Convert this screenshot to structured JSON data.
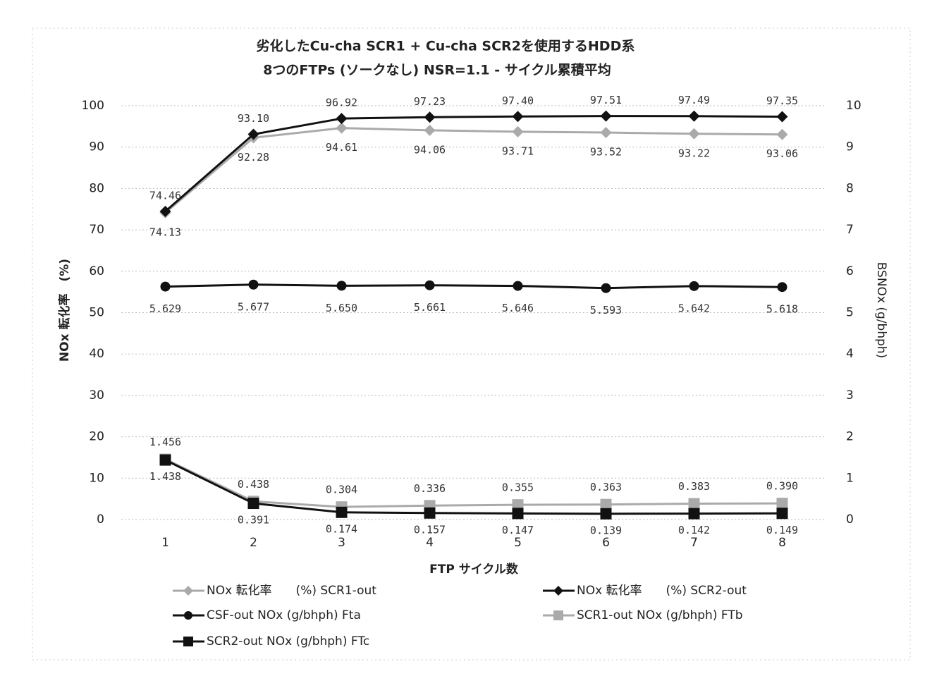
{
  "chart_data": {
    "type": "line",
    "title": "劣化したCu-cha SCR1 + Cu-cha SCR2を使用するHDD系",
    "subtitle": "8つのFTPs (ソークなし) NSR=1.1 - サイクル累積平均",
    "x_label": "FTP サイクル数",
    "y_label": "NOx 転化率　(%)",
    "y2_label": "BSNOx (g/bhph)",
    "categories": [
      "1",
      "2",
      "3",
      "4",
      "5",
      "6",
      "7",
      "8"
    ],
    "ylim": [
      0,
      100
    ],
    "yticks": [
      0,
      10,
      20,
      30,
      40,
      50,
      60,
      70,
      80,
      90,
      100
    ],
    "y2lim": [
      0,
      10
    ],
    "y2ticks": [
      0,
      1,
      2,
      3,
      4,
      5,
      6,
      7,
      8,
      9,
      10
    ],
    "grid": true,
    "series": [
      {
        "name": "NOx 転化率　　(%) SCR1-out",
        "color": "#aaaaaa",
        "marker": "diamond",
        "values": [
          74.13,
          92.28,
          94.61,
          94.06,
          93.71,
          93.52,
          93.22,
          93.06
        ],
        "value_labels": [
          "74.13",
          "92.28",
          "94.61",
          "94.06",
          "93.71",
          "93.52",
          "93.22",
          "93.06"
        ]
      },
      {
        "name": "NOx 転化率　　(%) SCR2-out",
        "color": "#111111",
        "marker": "diamond",
        "values": [
          74.46,
          93.1,
          96.92,
          97.23,
          97.4,
          97.51,
          97.49,
          97.35
        ],
        "value_labels": [
          "74.46",
          "93.10",
          "96.92",
          "97.23",
          "97.40",
          "97.51",
          "97.49",
          "97.35"
        ]
      },
      {
        "name": "CSF-out NOx (g/bhph) Fta",
        "color": "#111111",
        "marker": "circle",
        "axis": "y2",
        "values": [
          5.629,
          5.677,
          5.65,
          5.661,
          5.646,
          5.593,
          5.642,
          5.618
        ],
        "value_labels": [
          "5.629",
          "5.677",
          "5.650",
          "5.661",
          "5.646",
          "5.593",
          "5.642",
          "5.618"
        ]
      },
      {
        "name": "SCR1-out NOx (g/bhph) FTb",
        "color": "#aaaaaa",
        "marker": "square",
        "axis": "y2",
        "values": [
          1.456,
          0.438,
          0.304,
          0.336,
          0.355,
          0.363,
          0.383,
          0.39
        ],
        "value_labels": [
          "1.456",
          "0.438",
          "0.304",
          "0.336",
          "0.355",
          "0.363",
          "0.383",
          "0.390"
        ]
      },
      {
        "name": "SCR2-out NOx (g/bhph) FTc",
        "color": "#111111",
        "marker": "square",
        "axis": "y2",
        "values": [
          1.438,
          0.391,
          0.174,
          0.157,
          0.147,
          0.139,
          0.142,
          0.149
        ],
        "value_labels": [
          "1.438",
          "0.391",
          "0.174",
          "0.157",
          "0.147",
          "0.139",
          "0.142",
          "0.149"
        ]
      }
    ]
  }
}
